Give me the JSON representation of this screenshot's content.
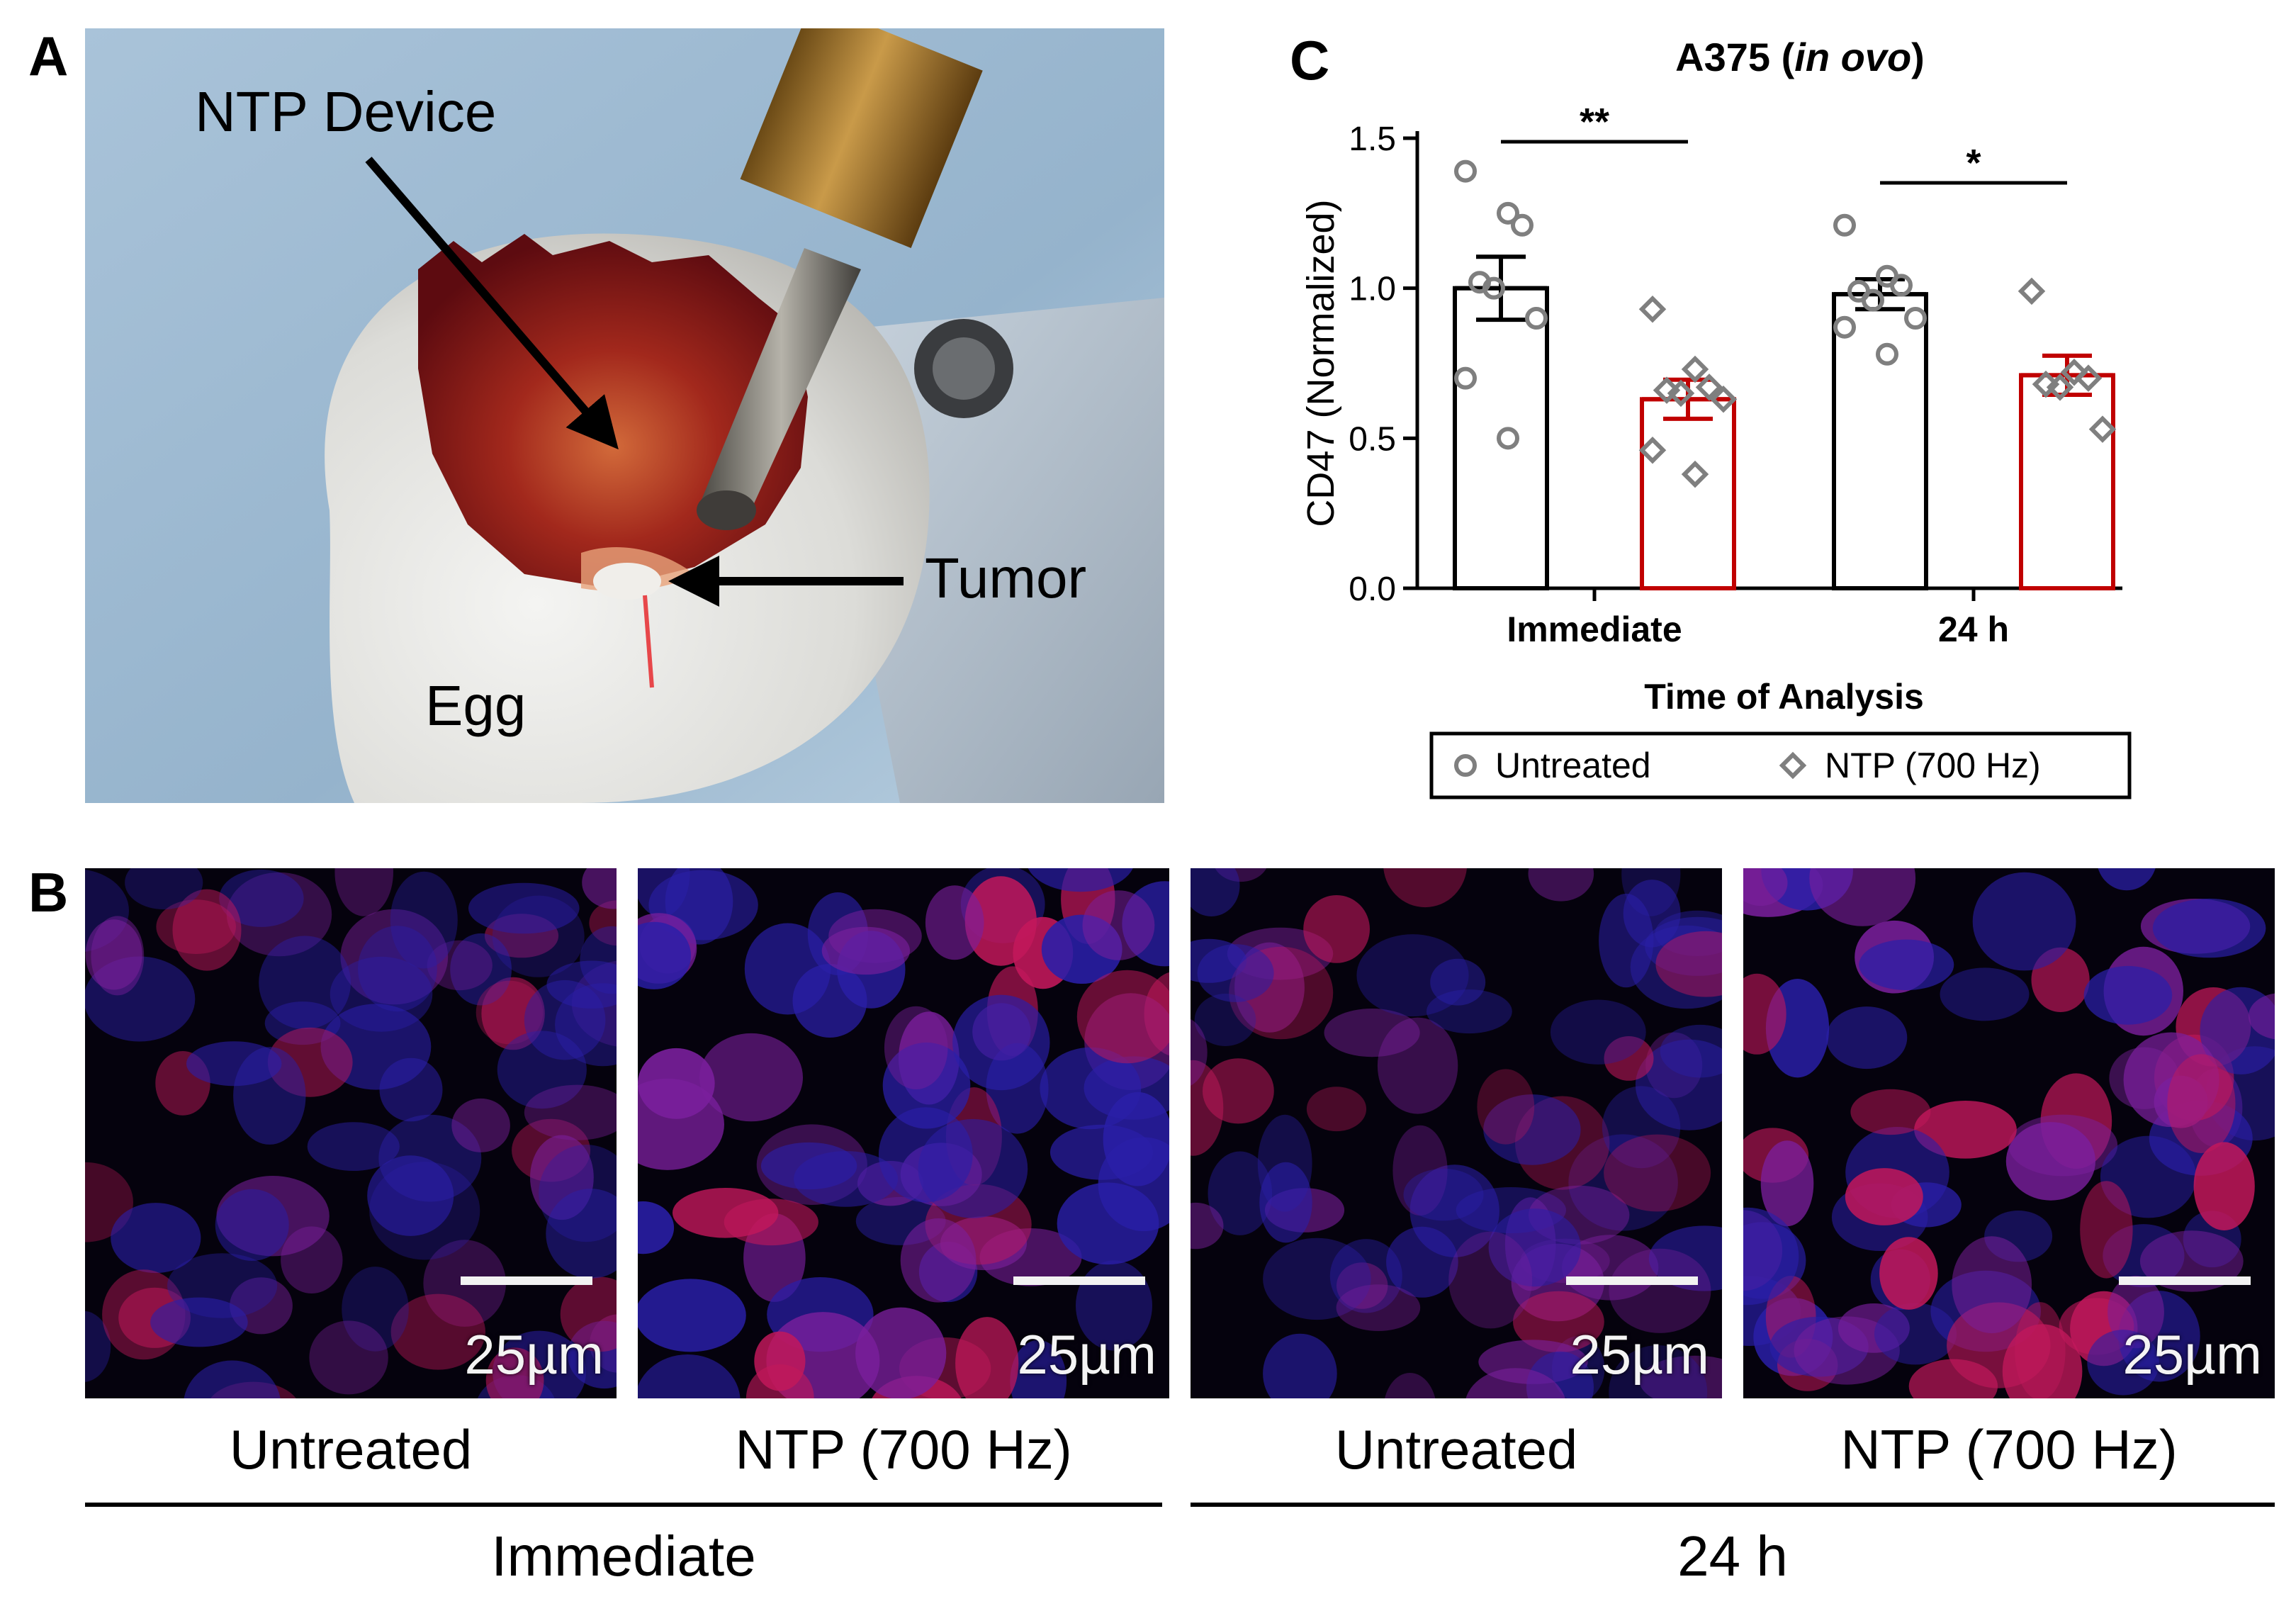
{
  "panels": {
    "a": {
      "letter": "A",
      "annotations": {
        "device": "NTP Device",
        "tumor": "Tumor",
        "egg": "Egg"
      }
    },
    "b": {
      "letter": "B",
      "scale_label": "25µm",
      "images": [
        {
          "label": "Untreated"
        },
        {
          "label": "NTP (700 Hz)"
        },
        {
          "label": "Untreated"
        },
        {
          "label": "NTP (700 Hz)"
        }
      ],
      "groups": [
        "Immediate",
        "24 h"
      ]
    },
    "c": {
      "letter": "C",
      "title_main": "A375 (",
      "title_italic": "in ovo",
      "title_end": ")"
    }
  },
  "colors": {
    "untreated": "#000000",
    "ntp": "#c00000",
    "points": "#7f7f7f"
  },
  "chart_data": {
    "type": "bar",
    "title": "A375 (in ovo)",
    "xlabel": "Time of Analysis",
    "ylabel": "CD47 (Normalized)",
    "ylim": [
      0,
      1.5
    ],
    "yticks": [
      "0.0",
      "0.5",
      "1.0",
      "1.5"
    ],
    "categories": [
      "Immediate",
      "24 h"
    ],
    "legend": {
      "placement": "bottom",
      "entries": [
        "Untreated",
        "NTP (700 Hz)"
      ]
    },
    "series": [
      {
        "name": "Untreated",
        "marker": "circle",
        "values": [
          1.0,
          0.98
        ],
        "sem": [
          0.105,
          0.05
        ],
        "points": [
          [
            1.39,
            1.25,
            1.21,
            1.02,
            1.0,
            0.9,
            0.7,
            0.5
          ],
          [
            1.21,
            1.04,
            1.01,
            0.99,
            0.96,
            0.9,
            0.87,
            0.78
          ]
        ]
      },
      {
        "name": "NTP (700 Hz)",
        "marker": "diamond",
        "values": [
          0.63,
          0.71
        ],
        "sem": [
          0.065,
          0.065
        ],
        "points": [
          [
            0.93,
            0.73,
            0.67,
            0.66,
            0.65,
            0.63,
            0.46,
            0.38
          ],
          [
            0.99,
            0.72,
            0.7,
            0.68,
            0.67,
            0.53
          ]
        ]
      }
    ],
    "significance": [
      "**",
      "*"
    ]
  }
}
